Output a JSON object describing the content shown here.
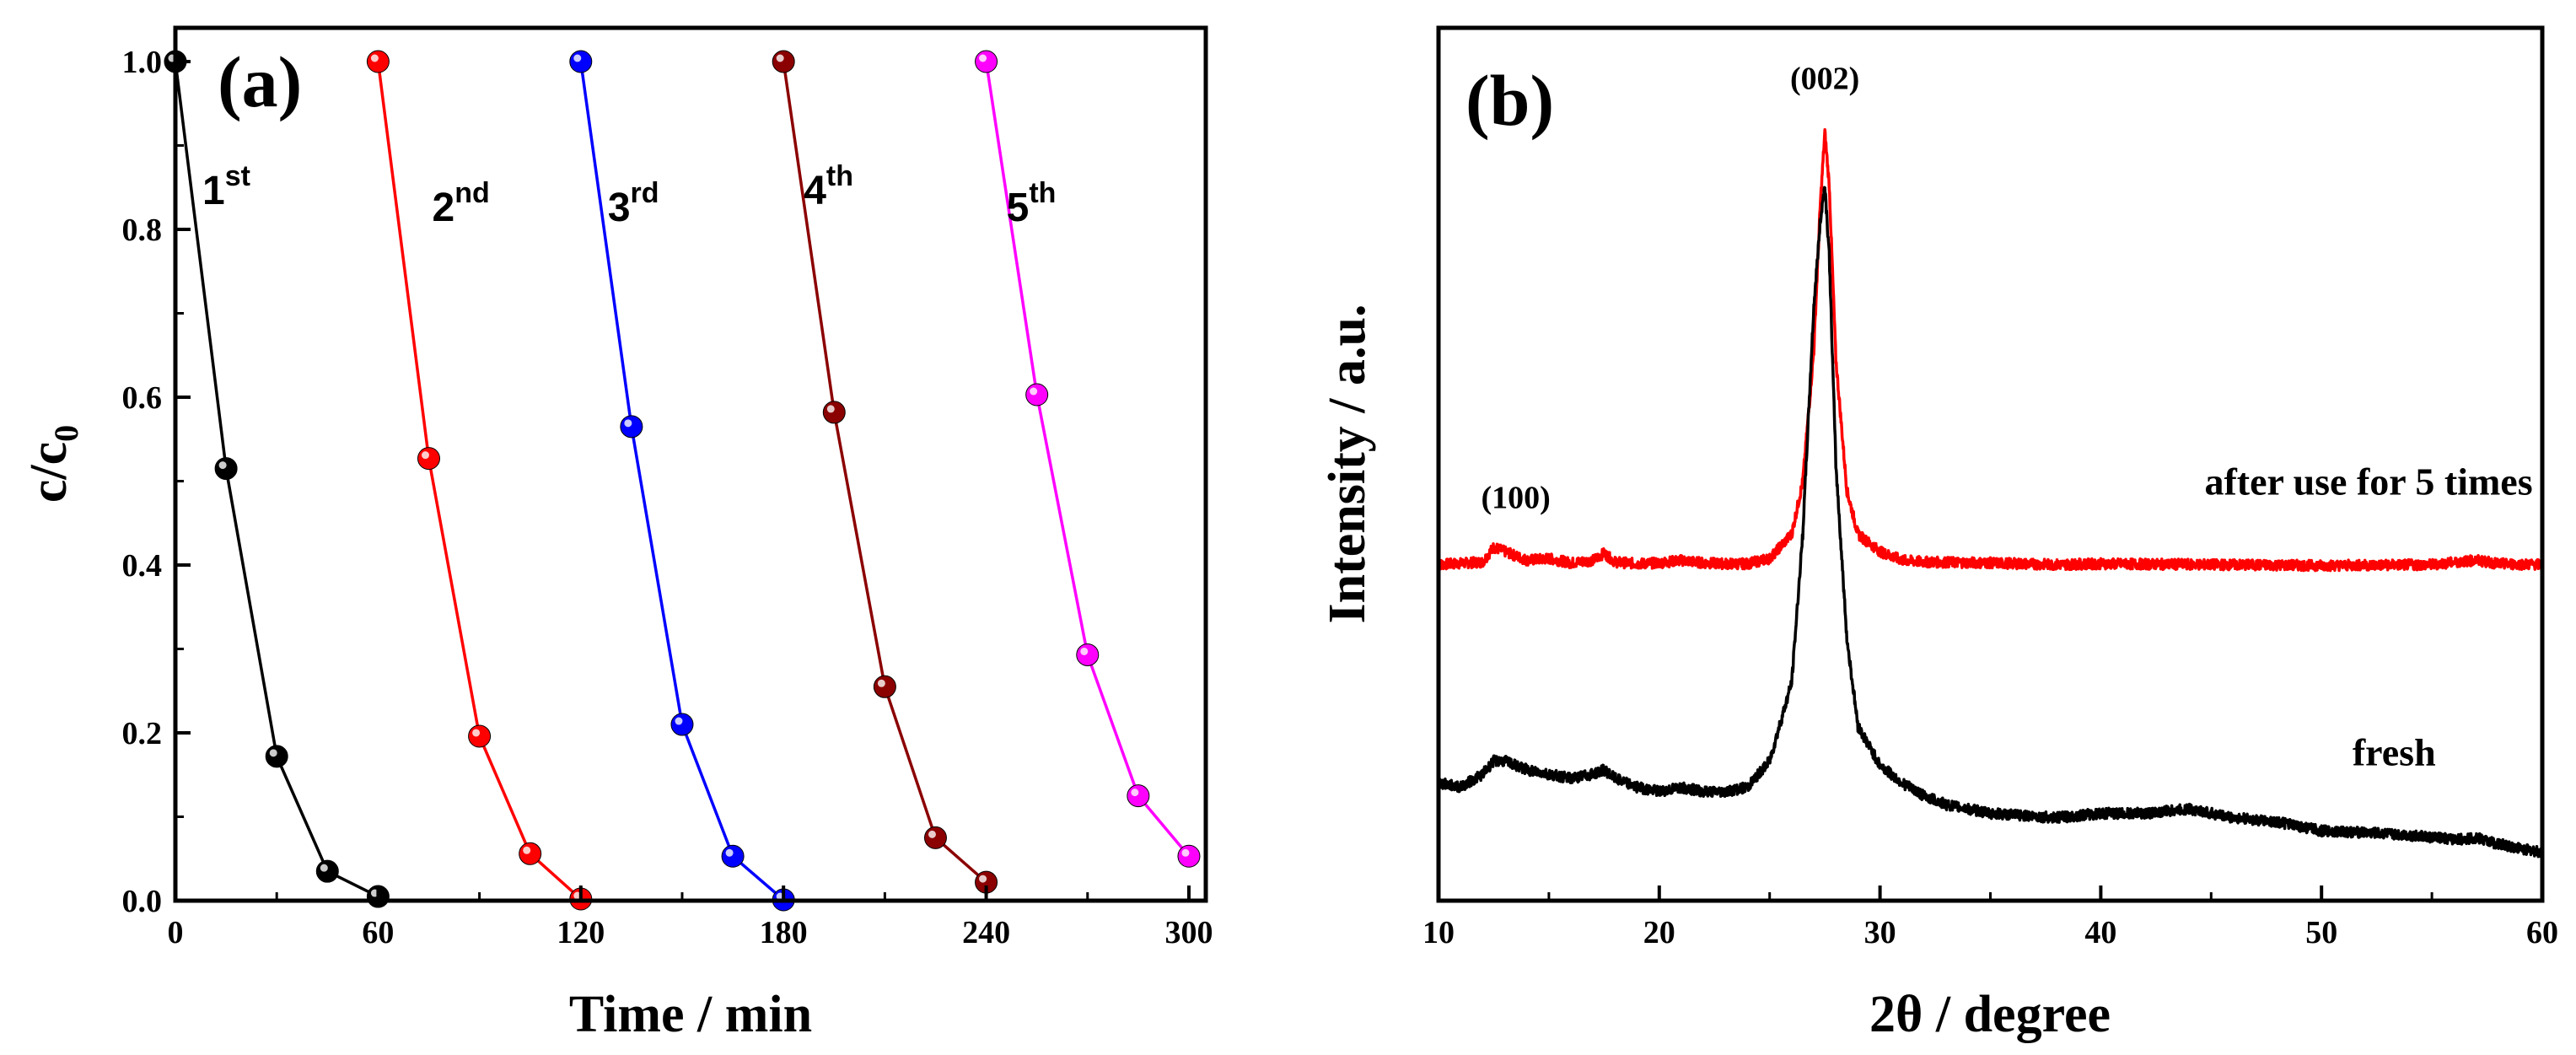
{
  "chart_data": [
    {
      "type": "line",
      "panel_label": "(a)",
      "xlabel": "Time / min",
      "ylabel_main": "c/c",
      "ylabel_sub": "0",
      "xlim": [
        0,
        305
      ],
      "ylim": [
        0,
        1.0
      ],
      "x_ticks": [
        "0",
        "60",
        "120",
        "180",
        "240",
        "300"
      ],
      "x_tick_values": [
        0,
        60,
        120,
        180,
        240,
        300
      ],
      "y_ticks": [
        "0.0",
        "0.2",
        "0.4",
        "0.6",
        "0.8",
        "1.0"
      ],
      "y_tick_values": [
        0,
        0.2,
        0.4,
        0.6,
        0.8,
        1.0
      ],
      "series": [
        {
          "name": "1st",
          "label_main": "1",
          "label_sup": "st",
          "label_at": [
            8,
            0.83
          ],
          "color": "#000000",
          "x": [
            0,
            15,
            30,
            45,
            60
          ],
          "y": [
            1.0,
            0.515,
            0.172,
            0.035,
            0.005
          ]
        },
        {
          "name": "2nd",
          "label_main": "2",
          "label_sup": "nd",
          "label_at": [
            76,
            0.81
          ],
          "color": "#ff0000",
          "x": [
            60,
            75,
            90,
            105,
            120
          ],
          "y": [
            1.0,
            0.527,
            0.196,
            0.056,
            0.002
          ]
        },
        {
          "name": "3rd",
          "label_main": "3",
          "label_sup": "rd",
          "label_at": [
            128,
            0.81
          ],
          "color": "#0000ff",
          "x": [
            120,
            135,
            150,
            165,
            180
          ],
          "y": [
            1.0,
            0.565,
            0.21,
            0.053,
            0.001
          ]
        },
        {
          "name": "4th",
          "label_main": "4",
          "label_sup": "th",
          "label_at": [
            186,
            0.83
          ],
          "color": "#8b0000",
          "x": [
            180,
            195,
            210,
            225,
            240
          ],
          "y": [
            1.0,
            0.582,
            0.255,
            0.075,
            0.022
          ]
        },
        {
          "name": "5th",
          "label_main": "5",
          "label_sup": "th",
          "label_at": [
            246,
            0.81
          ],
          "color": "#ff00ff",
          "x": [
            240,
            255,
            270,
            285,
            300
          ],
          "y": [
            1.0,
            0.603,
            0.293,
            0.125,
            0.053
          ]
        }
      ]
    },
    {
      "type": "line",
      "panel_label": "(b)",
      "xlabel": "2θ / degree",
      "ylabel": "Intensity / a.u.",
      "xlim": [
        10,
        60
      ],
      "ylim": [
        0,
        1.0
      ],
      "y_tick_labels_shown": false,
      "x_ticks": [
        "10",
        "20",
        "30",
        "40",
        "50",
        "60"
      ],
      "x_tick_values": [
        10,
        20,
        30,
        40,
        50,
        60
      ],
      "annotations": [
        {
          "text": "(100)",
          "at": [
            13.5,
            0.45
          ]
        },
        {
          "text": "(002)",
          "at": [
            27.5,
            0.93
          ]
        }
      ],
      "series": [
        {
          "name": "after use for 5 times",
          "color": "#ff0000",
          "label_at": [
            44.7,
            0.465
          ],
          "x": [
            10,
            12,
            12.5,
            13,
            14,
            15,
            16,
            17,
            17.5,
            18,
            19,
            20,
            21,
            22,
            23,
            24,
            25,
            26,
            26.5,
            27,
            27.3,
            27.5,
            27.7,
            28,
            28.5,
            29,
            30,
            31,
            32,
            35,
            38,
            40,
            45,
            50,
            55,
            57,
            58,
            60
          ],
          "y": [
            0.385,
            0.388,
            0.405,
            0.4,
            0.39,
            0.392,
            0.387,
            0.39,
            0.398,
            0.388,
            0.386,
            0.387,
            0.39,
            0.387,
            0.386,
            0.386,
            0.392,
            0.42,
            0.48,
            0.63,
            0.8,
            0.88,
            0.82,
            0.62,
            0.47,
            0.42,
            0.4,
            0.39,
            0.388,
            0.387,
            0.385,
            0.386,
            0.385,
            0.384,
            0.385,
            0.39,
            0.386,
            0.385
          ]
        },
        {
          "name": "fresh",
          "color": "#000000",
          "label_at": [
            51.4,
            0.155
          ],
          "x": [
            10,
            11,
            12,
            12.5,
            13,
            14,
            15,
            16,
            17,
            17.5,
            18,
            19,
            20,
            21,
            22,
            23,
            24,
            25,
            26,
            26.5,
            27,
            27.3,
            27.5,
            27.7,
            28,
            28.5,
            29,
            30,
            31,
            32,
            33,
            35,
            38,
            40,
            42,
            44,
            46,
            48,
            50,
            52,
            54,
            56,
            57,
            58,
            59,
            60
          ],
          "y": [
            0.135,
            0.13,
            0.145,
            0.16,
            0.16,
            0.15,
            0.145,
            0.14,
            0.145,
            0.15,
            0.14,
            0.13,
            0.125,
            0.13,
            0.125,
            0.125,
            0.13,
            0.16,
            0.25,
            0.42,
            0.68,
            0.78,
            0.82,
            0.74,
            0.5,
            0.3,
            0.2,
            0.155,
            0.135,
            0.12,
            0.11,
            0.1,
            0.095,
            0.1,
            0.1,
            0.105,
            0.095,
            0.09,
            0.08,
            0.078,
            0.075,
            0.07,
            0.072,
            0.065,
            0.06,
            0.055
          ]
        }
      ]
    }
  ]
}
